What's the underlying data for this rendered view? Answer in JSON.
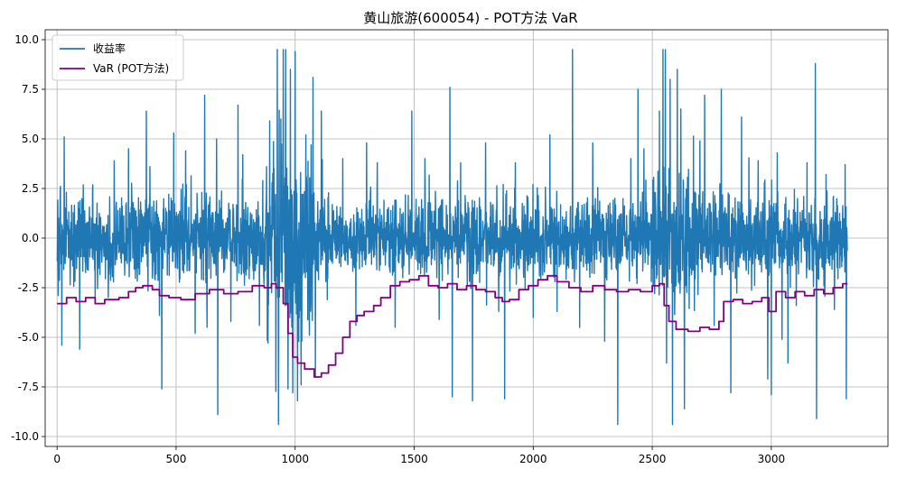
{
  "chart_data": {
    "type": "line",
    "title": "黄山旅游(600054) - POT方法 VaR",
    "xlabel": "",
    "ylabel": "",
    "xlim": [
      -50,
      3490
    ],
    "ylim": [
      -10.5,
      10.5
    ],
    "grid": true,
    "legend_position": "top-left",
    "xticks": [
      0,
      500,
      1000,
      1500,
      2000,
      2500,
      3000
    ],
    "xtick_labels": [
      "0",
      "500",
      "1000",
      "1500",
      "2000",
      "2500",
      "3000"
    ],
    "yticks": [
      10.0,
      7.5,
      5.0,
      2.5,
      0.0,
      -2.5,
      -5.0,
      -7.5,
      -10.0
    ],
    "ytick_labels": [
      "10.0",
      "7.5",
      "5.0",
      "2.5",
      "0.0",
      "-2.5",
      "-5.0",
      "-7.5",
      "-10.0"
    ],
    "series": [
      {
        "name": "收益率",
        "color": "#1f77b4",
        "n_points": 3320,
        "description_values": "daily returns (%) oscillating mostly within ±3, spikes to ±9.5",
        "spikes": [
          {
            "x": 5,
            "y": -2.9
          },
          {
            "x": 20,
            "y": -5.4
          },
          {
            "x": 30,
            "y": 5.1
          },
          {
            "x": 95,
            "y": -5.6
          },
          {
            "x": 160,
            "y": -3.3
          },
          {
            "x": 240,
            "y": 3.9
          },
          {
            "x": 300,
            "y": 4.5
          },
          {
            "x": 375,
            "y": 6.4
          },
          {
            "x": 390,
            "y": 3.6
          },
          {
            "x": 430,
            "y": -3.9
          },
          {
            "x": 440,
            "y": -7.6
          },
          {
            "x": 490,
            "y": 5.3
          },
          {
            "x": 540,
            "y": 4.4
          },
          {
            "x": 580,
            "y": -4.8
          },
          {
            "x": 620,
            "y": 7.2
          },
          {
            "x": 630,
            "y": -4.5
          },
          {
            "x": 670,
            "y": 5.0
          },
          {
            "x": 675,
            "y": -8.9
          },
          {
            "x": 730,
            "y": -4.2
          },
          {
            "x": 760,
            "y": 6.7
          },
          {
            "x": 780,
            "y": 4.2
          },
          {
            "x": 850,
            "y": -4.4
          },
          {
            "x": 880,
            "y": 3.6
          },
          {
            "x": 925,
            "y": 9.5
          },
          {
            "x": 930,
            "y": -9.4
          },
          {
            "x": 940,
            "y": 6.0
          },
          {
            "x": 950,
            "y": 9.5
          },
          {
            "x": 960,
            "y": 9.5
          },
          {
            "x": 970,
            "y": -7.6
          },
          {
            "x": 980,
            "y": 8.5
          },
          {
            "x": 990,
            "y": -7.8
          },
          {
            "x": 1000,
            "y": 9.4
          },
          {
            "x": 1010,
            "y": -8.2
          },
          {
            "x": 1025,
            "y": -7.4
          },
          {
            "x": 1045,
            "y": 5.2
          },
          {
            "x": 1060,
            "y": -4.9
          },
          {
            "x": 1075,
            "y": 8.1
          },
          {
            "x": 1085,
            "y": -7.0
          },
          {
            "x": 1110,
            "y": 6.4
          },
          {
            "x": 1135,
            "y": -3.1
          },
          {
            "x": 1200,
            "y": 4.0
          },
          {
            "x": 1255,
            "y": -4.4
          },
          {
            "x": 1300,
            "y": 4.8
          },
          {
            "x": 1345,
            "y": 3.8
          },
          {
            "x": 1420,
            "y": -4.5
          },
          {
            "x": 1490,
            "y": 6.4
          },
          {
            "x": 1545,
            "y": 4.0
          },
          {
            "x": 1605,
            "y": -4.1
          },
          {
            "x": 1650,
            "y": 7.6
          },
          {
            "x": 1660,
            "y": -8.0
          },
          {
            "x": 1695,
            "y": 3.8
          },
          {
            "x": 1745,
            "y": -8.2
          },
          {
            "x": 1800,
            "y": 4.8
          },
          {
            "x": 1855,
            "y": -3.7
          },
          {
            "x": 1880,
            "y": -8.1
          },
          {
            "x": 1925,
            "y": 3.8
          },
          {
            "x": 2000,
            "y": -4.0
          },
          {
            "x": 2070,
            "y": 5.2
          },
          {
            "x": 2100,
            "y": -3.7
          },
          {
            "x": 2165,
            "y": 9.5
          },
          {
            "x": 2195,
            "y": -4.5
          },
          {
            "x": 2250,
            "y": 4.8
          },
          {
            "x": 2300,
            "y": -5.2
          },
          {
            "x": 2355,
            "y": -9.4
          },
          {
            "x": 2410,
            "y": 4.0
          },
          {
            "x": 2440,
            "y": 7.5
          },
          {
            "x": 2465,
            "y": 4.5
          },
          {
            "x": 2530,
            "y": 6.4
          },
          {
            "x": 2545,
            "y": 9.5
          },
          {
            "x": 2555,
            "y": 9.5
          },
          {
            "x": 2560,
            "y": -6.3
          },
          {
            "x": 2575,
            "y": 8.0
          },
          {
            "x": 2585,
            "y": -9.4
          },
          {
            "x": 2605,
            "y": 8.5
          },
          {
            "x": 2620,
            "y": 6.5
          },
          {
            "x": 2635,
            "y": -8.6
          },
          {
            "x": 2700,
            "y": 4.9
          },
          {
            "x": 2720,
            "y": 7.2
          },
          {
            "x": 2760,
            "y": -4.4
          },
          {
            "x": 2790,
            "y": 7.5
          },
          {
            "x": 2830,
            "y": -7.8
          },
          {
            "x": 2875,
            "y": 6.1
          },
          {
            "x": 2945,
            "y": 3.9
          },
          {
            "x": 2985,
            "y": -7.1
          },
          {
            "x": 3000,
            "y": -7.9
          },
          {
            "x": 3025,
            "y": 4.3
          },
          {
            "x": 3045,
            "y": -5.1
          },
          {
            "x": 3070,
            "y": -6.3
          },
          {
            "x": 3105,
            "y": -3.4
          },
          {
            "x": 3150,
            "y": 3.8
          },
          {
            "x": 3185,
            "y": 8.8
          },
          {
            "x": 3190,
            "y": -9.1
          },
          {
            "x": 3230,
            "y": 3.2
          },
          {
            "x": 3265,
            "y": -3.6
          },
          {
            "x": 3310,
            "y": 3.7
          },
          {
            "x": 3315,
            "y": -8.1
          }
        ]
      },
      {
        "name": "VaR (POT方法)",
        "color": "#800080",
        "points": [
          [
            0,
            -3.3
          ],
          [
            40,
            -3.0
          ],
          [
            80,
            -3.2
          ],
          [
            120,
            -3.0
          ],
          [
            160,
            -3.3
          ],
          [
            200,
            -3.1
          ],
          [
            260,
            -3.0
          ],
          [
            300,
            -2.7
          ],
          [
            330,
            -2.5
          ],
          [
            360,
            -2.4
          ],
          [
            400,
            -2.6
          ],
          [
            430,
            -2.9
          ],
          [
            470,
            -3.0
          ],
          [
            520,
            -3.1
          ],
          [
            580,
            -2.8
          ],
          [
            640,
            -2.6
          ],
          [
            700,
            -2.8
          ],
          [
            760,
            -2.7
          ],
          [
            820,
            -2.4
          ],
          [
            870,
            -2.5
          ],
          [
            900,
            -2.3
          ],
          [
            920,
            -2.5
          ],
          [
            950,
            -3.3
          ],
          [
            970,
            -4.8
          ],
          [
            990,
            -6.0
          ],
          [
            1010,
            -6.3
          ],
          [
            1040,
            -6.6
          ],
          [
            1080,
            -7.0
          ],
          [
            1110,
            -6.8
          ],
          [
            1140,
            -6.4
          ],
          [
            1170,
            -5.8
          ],
          [
            1200,
            -5.0
          ],
          [
            1230,
            -4.2
          ],
          [
            1260,
            -3.9
          ],
          [
            1290,
            -3.7
          ],
          [
            1330,
            -3.4
          ],
          [
            1360,
            -3.0
          ],
          [
            1400,
            -2.4
          ],
          [
            1440,
            -2.2
          ],
          [
            1480,
            -2.1
          ],
          [
            1520,
            -1.9
          ],
          [
            1560,
            -2.4
          ],
          [
            1600,
            -2.5
          ],
          [
            1640,
            -2.3
          ],
          [
            1680,
            -2.6
          ],
          [
            1720,
            -2.4
          ],
          [
            1760,
            -2.6
          ],
          [
            1800,
            -2.7
          ],
          [
            1840,
            -3.0
          ],
          [
            1870,
            -3.2
          ],
          [
            1900,
            -3.1
          ],
          [
            1940,
            -2.6
          ],
          [
            1980,
            -2.4
          ],
          [
            2020,
            -2.1
          ],
          [
            2060,
            -1.9
          ],
          [
            2100,
            -2.2
          ],
          [
            2150,
            -2.5
          ],
          [
            2200,
            -2.7
          ],
          [
            2250,
            -2.4
          ],
          [
            2300,
            -2.6
          ],
          [
            2350,
            -2.7
          ],
          [
            2400,
            -2.6
          ],
          [
            2450,
            -2.7
          ],
          [
            2500,
            -2.4
          ],
          [
            2530,
            -2.3
          ],
          [
            2550,
            -3.4
          ],
          [
            2570,
            -4.2
          ],
          [
            2600,
            -4.6
          ],
          [
            2650,
            -4.7
          ],
          [
            2700,
            -4.5
          ],
          [
            2740,
            -4.6
          ],
          [
            2780,
            -4.2
          ],
          [
            2800,
            -3.2
          ],
          [
            2840,
            -3.1
          ],
          [
            2880,
            -3.3
          ],
          [
            2920,
            -3.2
          ],
          [
            2960,
            -3.0
          ],
          [
            2990,
            -3.7
          ],
          [
            3020,
            -2.7
          ],
          [
            3060,
            -3.0
          ],
          [
            3100,
            -2.7
          ],
          [
            3140,
            -2.9
          ],
          [
            3180,
            -2.6
          ],
          [
            3220,
            -2.8
          ],
          [
            3260,
            -2.5
          ],
          [
            3300,
            -2.3
          ],
          [
            3320,
            -2.3
          ]
        ]
      }
    ]
  }
}
